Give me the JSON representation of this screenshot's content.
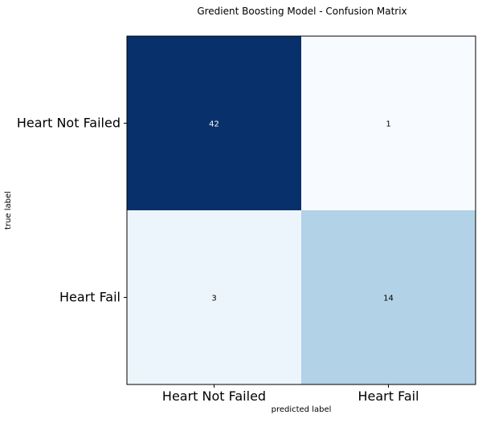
{
  "chart_data": {
    "type": "heatmap",
    "title": "Gredient Boosting Model - Confusion Matrix",
    "xlabel": "predicted label",
    "ylabel": "true label",
    "x_categories": [
      "Heart Not Failed",
      "Heart Fail"
    ],
    "y_categories": [
      "Heart Not Failed",
      "Heart Fail"
    ],
    "matrix": [
      [
        42,
        1
      ],
      [
        3,
        14
      ]
    ],
    "colormap": "Blues",
    "value_range": [
      1,
      42
    ],
    "grid": false,
    "colors": {
      "background": "#ffffff",
      "border": "#000000",
      "text_light": "#ffffff",
      "text_dark": "#000000"
    }
  }
}
